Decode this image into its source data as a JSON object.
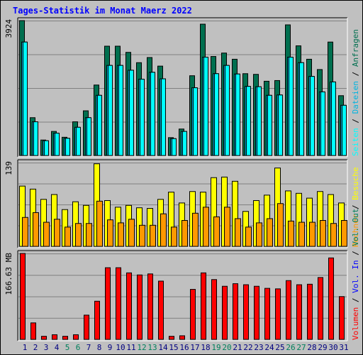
{
  "chart_data": [
    {
      "type": "bar",
      "title": "Tages-Statistik im Monat Maerz 2022",
      "ymax_label": "3924",
      "ylim": [
        0,
        3924
      ],
      "categories": [
        "1",
        "2",
        "3",
        "4",
        "5",
        "6",
        "7",
        "8",
        "9",
        "10",
        "11",
        "12",
        "13",
        "14",
        "15",
        "16",
        "17",
        "18",
        "19",
        "20",
        "21",
        "22",
        "23",
        "24",
        "25",
        "26",
        "27",
        "28",
        "29",
        "30",
        "31"
      ],
      "weekend_days": [
        "5",
        "6",
        "12",
        "13",
        "19",
        "20",
        "26",
        "27"
      ],
      "series": [
        {
          "name": "Anfragen",
          "color": "#006f4f",
          "values": [
            3924,
            1100,
            450,
            700,
            530,
            980,
            1300,
            2050,
            3180,
            3180,
            3000,
            2700,
            2850,
            2600,
            520,
            770,
            2320,
            3820,
            2880,
            2980,
            2800,
            2380,
            2360,
            2160,
            2180,
            3800,
            3190,
            2800,
            2500,
            3300,
            1740
          ]
        },
        {
          "name": "Dateien",
          "color": "#00b4e0",
          "values": [
            3300,
            980,
            430,
            650,
            500,
            820,
            1100,
            1750,
            2620,
            2620,
            2480,
            2220,
            2420,
            2230,
            490,
            700,
            1970,
            2860,
            2380,
            2620,
            2370,
            2010,
            2000,
            1750,
            1760,
            2860,
            2700,
            2300,
            1850,
            2140,
            1460
          ]
        },
        {
          "name": "Seiten",
          "color": "#00ffff",
          "values": [
            3300,
            980,
            430,
            650,
            500,
            820,
            1100,
            1750,
            2620,
            2620,
            2480,
            2220,
            2420,
            2230,
            490,
            700,
            1970,
            2860,
            2380,
            2620,
            2370,
            2010,
            2000,
            1750,
            1760,
            2860,
            2700,
            2300,
            1850,
            2140,
            1460
          ]
        }
      ]
    },
    {
      "type": "bar",
      "ymax_label": "139",
      "ylim": [
        0,
        139
      ],
      "series": [
        {
          "name": "Besuche",
          "color": "#ffff00",
          "values": [
            100,
            95,
            78,
            86,
            61,
            74,
            68,
            137,
            76,
            65,
            68,
            64,
            63,
            78,
            90,
            72,
            91,
            90,
            114,
            115,
            108,
            58,
            76,
            85,
            130,
            92,
            88,
            80,
            91,
            86,
            72
          ]
        },
        {
          "name": "Rechner",
          "color": "#ff9900",
          "values": [
            48,
            56,
            40,
            45,
            32,
            38,
            38,
            75,
            44,
            39,
            45,
            35,
            35,
            54,
            32,
            43,
            55,
            65,
            49,
            65,
            46,
            32,
            39,
            46,
            71,
            42,
            40,
            40,
            43,
            38,
            43
          ]
        }
      ]
    },
    {
      "type": "bar",
      "ymax_label": "166.63 MB",
      "ylim": [
        0,
        166.63
      ],
      "series": [
        {
          "name": "Volumen",
          "color": "#ff0000",
          "values": [
            166.63,
            32,
            6,
            9,
            6,
            9,
            47,
            74,
            139,
            139,
            129,
            125,
            127,
            113,
            6,
            7,
            97,
            129,
            116,
            103,
            108,
            106,
            103,
            99,
            98,
            114,
            106,
            107,
            120,
            158,
            83
          ]
        }
      ]
    }
  ],
  "right_labels": {
    "panel1": {
      "a": "Anfragen",
      "sep1": " / ",
      "b": "Dateien",
      "sep2": " / ",
      "c": "Seiten"
    },
    "panel2": {
      "a": "Besuche",
      "sep1": " / ",
      "b": "Rechner"
    },
    "panel3": {
      "a": "Volumen",
      "sep1": " / ",
      "b": "Vol. In",
      "sep2": " / ",
      "c": "Vol. Out"
    }
  },
  "colors": {
    "background": "#c0c0c0",
    "title": "#0000ff",
    "grid": "#808080",
    "weekday_label": "#000080",
    "weekend_label": "#00805c",
    "sep": "#000000",
    "vol_in": "#0000ff",
    "vol_out": "#00805c"
  }
}
